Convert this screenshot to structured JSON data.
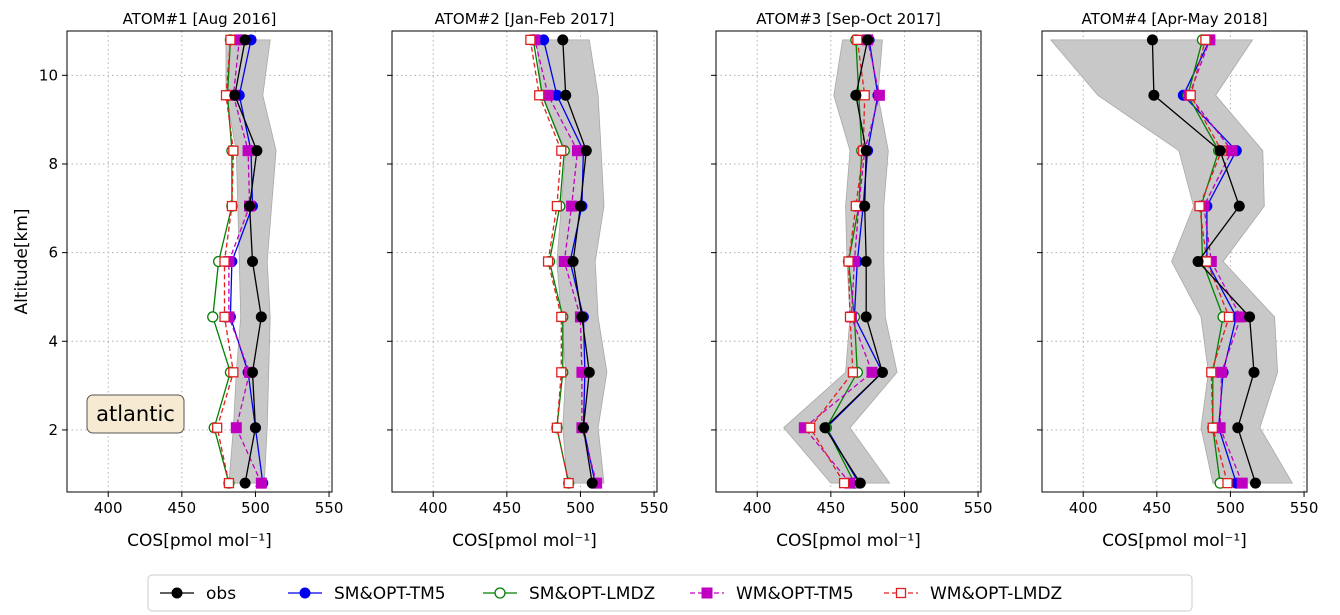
{
  "chart_data": [
    {
      "type": "line",
      "title": "ATOM#1 [Aug 2016]",
      "xlabel": "COS[pmol mol⁻¹]",
      "ylabel": "Altitude[km]",
      "xlim": [
        372,
        552
      ],
      "ylim": [
        0.6,
        11.0
      ],
      "xticks": [
        400,
        450,
        500,
        550
      ],
      "yticks": [
        2,
        4,
        6,
        8,
        10
      ],
      "grid": true,
      "annotation": "atlantic",
      "altitudes": [
        0.8,
        2.05,
        3.3,
        4.55,
        5.8,
        7.05,
        8.3,
        9.55,
        10.8
      ],
      "band": {
        "low": [
          482,
          485,
          487,
          490,
          489,
          488,
          487,
          480,
          480
        ],
        "high": [
          506,
          508,
          509,
          510,
          508,
          511,
          514,
          505,
          510
        ]
      },
      "series": [
        {
          "name": "obs",
          "values": [
            493,
            500,
            498,
            504,
            498,
            496,
            501,
            486,
            493
          ]
        },
        {
          "name": "SM&OPT-TM5",
          "values": [
            505,
            500,
            495,
            483,
            484,
            498,
            497,
            489,
            497
          ]
        },
        {
          "name": "SM&OPT-LMDZ",
          "values": [
            482,
            472,
            483,
            471,
            475,
            484,
            484,
            481,
            483
          ]
        },
        {
          "name": "WM&OPT-TM5",
          "values": [
            504,
            487,
            496,
            482,
            482,
            496,
            495,
            485,
            489
          ]
        },
        {
          "name": "WM&OPT-LMDZ",
          "values": [
            482,
            474,
            485,
            479,
            479,
            484,
            485,
            480,
            483
          ]
        }
      ]
    },
    {
      "type": "line",
      "title": "ATOM#2 [Jan-Feb 2017]",
      "xlabel": "COS[pmol mol⁻¹]",
      "xlim": [
        372,
        552
      ],
      "ylim": [
        0.6,
        11.0
      ],
      "xticks": [
        400,
        450,
        500,
        550
      ],
      "yticks": [
        2,
        4,
        6,
        8,
        10
      ],
      "grid": true,
      "altitudes": [
        0.8,
        2.05,
        3.3,
        4.55,
        5.8,
        7.05,
        8.3,
        9.55,
        10.8
      ],
      "band": {
        "low": [
          491,
          488,
          490,
          487,
          484,
          487,
          490,
          474,
          470
        ],
        "high": [
          516,
          512,
          518,
          512,
          510,
          516,
          514,
          512,
          506
        ]
      },
      "series": [
        {
          "name": "obs",
          "values": [
            508,
            502,
            506,
            501,
            495,
            500,
            504,
            490,
            488
          ]
        },
        {
          "name": "SM&OPT-TM5",
          "values": [
            510,
            502,
            503,
            502,
            493,
            501,
            502,
            484,
            475
          ]
        },
        {
          "name": "SM&OPT-LMDZ",
          "values": [
            492,
            484,
            488,
            488,
            479,
            486,
            489,
            474,
            468
          ]
        },
        {
          "name": "WM&OPT-TM5",
          "values": [
            511,
            501,
            501,
            500,
            489,
            494,
            498,
            478,
            469
          ]
        },
        {
          "name": "WM&OPT-LMDZ",
          "values": [
            492,
            484,
            487,
            487,
            478,
            484,
            487,
            472,
            466
          ]
        }
      ]
    },
    {
      "type": "line",
      "title": "ATOM#3 [Sep-Oct 2017]",
      "xlabel": "COS[pmol mol⁻¹]",
      "xlim": [
        372,
        552
      ],
      "ylim": [
        0.6,
        11.0
      ],
      "xticks": [
        400,
        450,
        500,
        550
      ],
      "yticks": [
        2,
        4,
        6,
        8,
        10
      ],
      "grid": true,
      "altitudes": [
        0.8,
        2.05,
        3.3,
        4.55,
        5.8,
        7.05,
        8.3,
        9.55,
        10.8
      ],
      "band": {
        "low": [
          450,
          418,
          460,
          463,
          461,
          460,
          463,
          452,
          458
        ],
        "high": [
          490,
          463,
          495,
          487,
          486,
          486,
          489,
          482,
          485
        ]
      },
      "series": [
        {
          "name": "obs",
          "values": [
            470,
            446,
            485,
            474,
            474,
            473,
            474,
            467,
            475
          ]
        },
        {
          "name": "SM&OPT-TM5",
          "values": [
            469,
            447,
            485,
            466,
            468,
            472,
            475,
            482,
            476
          ]
        },
        {
          "name": "SM&OPT-LMDZ",
          "values": [
            466,
            447,
            468,
            466,
            462,
            469,
            471,
            469,
            467
          ]
        },
        {
          "name": "WM&OPT-TM5",
          "values": [
            463,
            432,
            478,
            464,
            466,
            469,
            473,
            483,
            475
          ]
        },
        {
          "name": "WM&OPT-LMDZ",
          "values": [
            459,
            436,
            465,
            463,
            462,
            467,
            472,
            473,
            468
          ]
        }
      ]
    },
    {
      "type": "line",
      "title": "ATOM#4 [Apr-May 2018]",
      "xlabel": "COS[pmol mol⁻¹]",
      "xlim": [
        372,
        552
      ],
      "ylim": [
        0.6,
        11.0
      ],
      "xticks": [
        400,
        450,
        500,
        550
      ],
      "yticks": [
        2,
        4,
        6,
        8,
        10
      ],
      "grid": true,
      "altitudes": [
        0.8,
        2.05,
        3.3,
        4.55,
        5.8,
        7.05,
        8.3,
        9.55,
        10.8
      ],
      "band": {
        "low": [
          488,
          480,
          485,
          480,
          460,
          475,
          465,
          410,
          378
        ],
        "high": [
          542,
          520,
          532,
          530,
          495,
          523,
          522,
          490,
          515
        ]
      },
      "series": [
        {
          "name": "obs",
          "values": [
            517,
            505,
            516,
            513,
            478,
            506,
            493,
            448,
            447
          ]
        },
        {
          "name": "SM&OPT-TM5",
          "values": [
            504,
            492,
            495,
            504,
            484,
            484,
            504,
            468,
            486
          ]
        },
        {
          "name": "SM&OPT-LMDZ",
          "values": [
            493,
            488,
            488,
            495,
            481,
            480,
            492,
            471,
            481
          ]
        },
        {
          "name": "WM&OPT-TM5",
          "values": [
            508,
            493,
            494,
            507,
            487,
            482,
            501,
            472,
            486
          ]
        },
        {
          "name": "WM&OPT-LMDZ",
          "values": [
            498,
            488,
            487,
            499,
            484,
            479,
            494,
            473,
            483
          ]
        }
      ]
    }
  ],
  "style": {
    "obs": {
      "color": "#000000",
      "dash": "",
      "marker": "filled-circle"
    },
    "SM&OPT-TM5": {
      "color": "#0000ee",
      "dash": "",
      "marker": "filled-circle"
    },
    "SM&OPT-LMDZ": {
      "color": "#008000",
      "dash": "",
      "marker": "open-circle"
    },
    "WM&OPT-TM5": {
      "color": "#c000c0",
      "dash": "5,3",
      "marker": "filled-square"
    },
    "WM&OPT-LMDZ": {
      "color": "#e02020",
      "dash": "5,3",
      "marker": "open-square"
    },
    "band_color": "#c8c8c8"
  },
  "legend": {
    "position": "bottom-center",
    "entries": [
      "obs",
      "SM&OPT-TM5",
      "SM&OPT-LMDZ",
      "WM&OPT-TM5",
      "WM&OPT-LMDZ"
    ]
  }
}
